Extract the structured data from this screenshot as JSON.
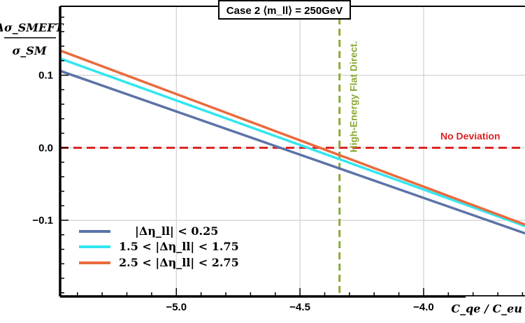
{
  "chart_data": {
    "type": "line",
    "title": "Case 2 ⟨m_ll⟩ = 250GeV",
    "xlabel": "C_qe / C_eu",
    "ylabel": "Δσ_SMEFT / σ_SM",
    "xlim": [
      -5.47,
      -3.59
    ],
    "ylim": [
      -0.205,
      0.195
    ],
    "x_ticks": [
      -5.0,
      -4.5,
      -4.0
    ],
    "x_tick_labels": [
      "−5.0",
      "−4.5",
      "−4.0"
    ],
    "y_ticks": [
      -0.1,
      0.0,
      0.1
    ],
    "y_tick_labels": [
      "−0.1",
      "0.0",
      "0.1"
    ],
    "grid": true,
    "legend_position": "bottom-left",
    "series": [
      {
        "name": "|Δη_ll| < 0.25",
        "color": "#5b73a8",
        "x": [
          -5.47,
          -3.59
        ],
        "y": [
          0.106,
          -0.118
        ]
      },
      {
        "name": "1.5 < |Δη_ll| < 1.75",
        "color": "#33e6f0",
        "x": [
          -5.47,
          -3.59
        ],
        "y": [
          0.123,
          -0.108
        ]
      },
      {
        "name": "2.5 < |Δη_ll| < 2.75",
        "color": "#ea6a3c",
        "x": [
          -5.47,
          -3.59
        ],
        "y": [
          0.134,
          -0.106
        ]
      }
    ],
    "reference_lines": [
      {
        "orientation": "horizontal",
        "value": 0.0,
        "color": "#dd2222",
        "label": "No Deviation"
      },
      {
        "orientation": "vertical",
        "value": -4.34,
        "color": "#8aaa34",
        "label": "High-Energy Flat Direct."
      }
    ]
  }
}
